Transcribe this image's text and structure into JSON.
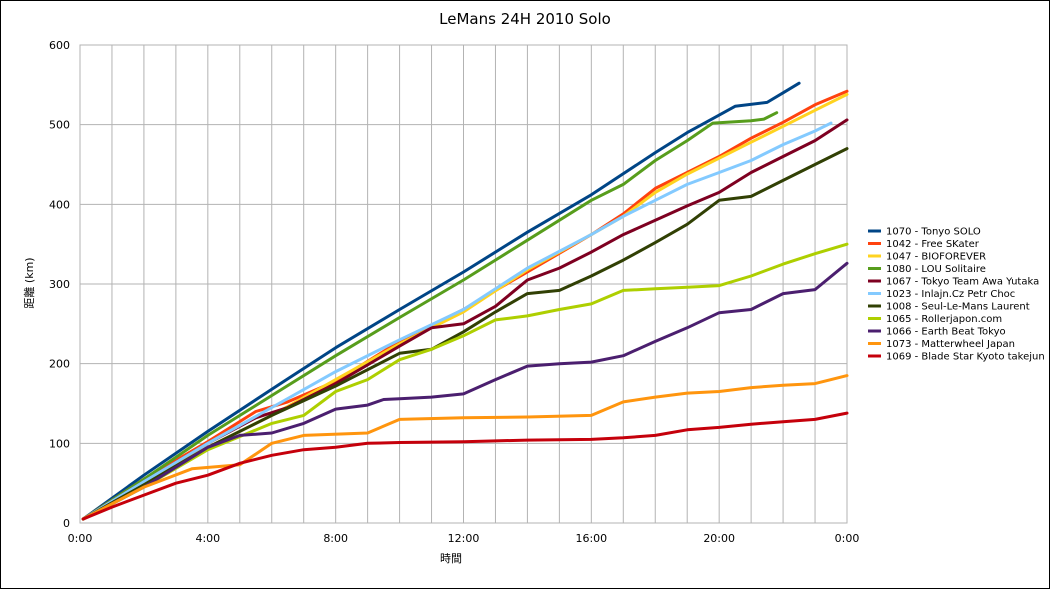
{
  "chart_data": {
    "type": "line",
    "title": "LeMans 24H 2010 Solo",
    "xlabel": "時間",
    "ylabel": "距離 (km)",
    "x_unit": "elapsed hours (tick labels shown as H:MM)",
    "xlim": [
      0,
      24
    ],
    "ylim": [
      0,
      600
    ],
    "x_ticks": [
      "0:00",
      "4:00",
      "8:00",
      "12:00",
      "16:00",
      "20:00",
      "0:00"
    ],
    "y_ticks": [
      "0",
      "100",
      "200",
      "300",
      "400",
      "500",
      "600"
    ],
    "grid": true,
    "legend_position": "right",
    "series": [
      {
        "name": "1070 - Tonyo SOLO",
        "color": "#004586",
        "points": [
          [
            0.1,
            5
          ],
          [
            2,
            60
          ],
          [
            4,
            115
          ],
          [
            6,
            168
          ],
          [
            8,
            220
          ],
          [
            10,
            268
          ],
          [
            12,
            315
          ],
          [
            14,
            365
          ],
          [
            16,
            412
          ],
          [
            18,
            465
          ],
          [
            19,
            490
          ],
          [
            20,
            512
          ],
          [
            20.5,
            523
          ],
          [
            21.5,
            528
          ],
          [
            22,
            540
          ],
          [
            22.5,
            552
          ]
        ]
      },
      {
        "name": "1042 - Free SKater",
        "color": "#ff420e",
        "points": [
          [
            0.1,
            5
          ],
          [
            2,
            55
          ],
          [
            4,
            102
          ],
          [
            5.5,
            140
          ],
          [
            6.5,
            152
          ],
          [
            8,
            178
          ],
          [
            10,
            228
          ],
          [
            12,
            268
          ],
          [
            13,
            292
          ],
          [
            14,
            315
          ],
          [
            16,
            362
          ],
          [
            17,
            388
          ],
          [
            18,
            420
          ],
          [
            19,
            440
          ],
          [
            20,
            460
          ],
          [
            21,
            483
          ],
          [
            22,
            503
          ],
          [
            23,
            525
          ],
          [
            24,
            542
          ]
        ]
      },
      {
        "name": "1047 - BIOFOREVER",
        "color": "#ffd320",
        "points": [
          [
            0.1,
            5
          ],
          [
            2,
            50
          ],
          [
            4,
            95
          ],
          [
            6,
            135
          ],
          [
            8,
            180
          ],
          [
            10,
            225
          ],
          [
            12,
            265
          ],
          [
            14,
            318
          ],
          [
            16,
            362
          ],
          [
            17,
            385
          ],
          [
            18,
            415
          ],
          [
            19,
            438
          ],
          [
            20,
            458
          ],
          [
            21,
            478
          ],
          [
            22,
            498
          ],
          [
            23,
            518
          ],
          [
            24,
            538
          ]
        ]
      },
      {
        "name": "1080 - LOU Solitaire",
        "color": "#579d1c",
        "points": [
          [
            0.1,
            5
          ],
          [
            2,
            55
          ],
          [
            4,
            110
          ],
          [
            6,
            160
          ],
          [
            8,
            210
          ],
          [
            10,
            258
          ],
          [
            12,
            305
          ],
          [
            14,
            355
          ],
          [
            16,
            405
          ],
          [
            17,
            425
          ],
          [
            18,
            455
          ],
          [
            19,
            480
          ],
          [
            19.8,
            502
          ],
          [
            21,
            505
          ],
          [
            21.4,
            507
          ],
          [
            21.8,
            515
          ]
        ]
      },
      {
        "name": "1067 - Tokyo Team Awa Yutaka",
        "color": "#7e0021",
        "points": [
          [
            0.1,
            5
          ],
          [
            2,
            52
          ],
          [
            4,
            100
          ],
          [
            5.5,
            132
          ],
          [
            6.5,
            145
          ],
          [
            8,
            175
          ],
          [
            10,
            222
          ],
          [
            11,
            245
          ],
          [
            12,
            250
          ],
          [
            13,
            272
          ],
          [
            14,
            305
          ],
          [
            15,
            320
          ],
          [
            16,
            340
          ],
          [
            17,
            362
          ],
          [
            18,
            380
          ],
          [
            19,
            398
          ],
          [
            20,
            415
          ],
          [
            21,
            440
          ],
          [
            22,
            460
          ],
          [
            23,
            480
          ],
          [
            24,
            506
          ]
        ]
      },
      {
        "name": "1023 - Inlajn.Cz Petr Choc",
        "color": "#83caff",
        "points": [
          [
            0.1,
            5
          ],
          [
            2,
            52
          ],
          [
            4,
            100
          ],
          [
            6,
            145
          ],
          [
            8,
            190
          ],
          [
            10,
            230
          ],
          [
            12,
            268
          ],
          [
            14,
            320
          ],
          [
            16,
            362
          ],
          [
            17,
            385
          ],
          [
            18,
            405
          ],
          [
            19,
            425
          ],
          [
            20,
            440
          ],
          [
            21,
            455
          ],
          [
            22,
            475
          ],
          [
            23,
            492
          ],
          [
            23.5,
            502
          ]
        ]
      },
      {
        "name": "1008 - Seul-Le-Mans Laurent",
        "color": "#314004",
        "points": [
          [
            0.1,
            5
          ],
          [
            2,
            48
          ],
          [
            4,
            95
          ],
          [
            6,
            135
          ],
          [
            8,
            172
          ],
          [
            10,
            213
          ],
          [
            11,
            218
          ],
          [
            12,
            240
          ],
          [
            13,
            265
          ],
          [
            14,
            288
          ],
          [
            15,
            292
          ],
          [
            16,
            310
          ],
          [
            17,
            330
          ],
          [
            18,
            352
          ],
          [
            19,
            375
          ],
          [
            20,
            405
          ],
          [
            21,
            410
          ],
          [
            22,
            430
          ],
          [
            23,
            450
          ],
          [
            24,
            470
          ]
        ]
      },
      {
        "name": "1065 - Rollerjapon.com",
        "color": "#aecf00",
        "points": [
          [
            0.1,
            5
          ],
          [
            2,
            45
          ],
          [
            4,
            92
          ],
          [
            6,
            125
          ],
          [
            7,
            135
          ],
          [
            8,
            165
          ],
          [
            9,
            180
          ],
          [
            10,
            205
          ],
          [
            11,
            218
          ],
          [
            12,
            235
          ],
          [
            13,
            255
          ],
          [
            14,
            260
          ],
          [
            15,
            268
          ],
          [
            16,
            275
          ],
          [
            17,
            292
          ],
          [
            18,
            294
          ],
          [
            19,
            296
          ],
          [
            20,
            298
          ],
          [
            21,
            310
          ],
          [
            22,
            325
          ],
          [
            23,
            338
          ],
          [
            24,
            350
          ]
        ]
      },
      {
        "name": "1066 - Earth Beat Tokyo",
        "color": "#4b1f6f",
        "points": [
          [
            0.1,
            5
          ],
          [
            2,
            45
          ],
          [
            4,
            95
          ],
          [
            5,
            110
          ],
          [
            6,
            113
          ],
          [
            7,
            125
          ],
          [
            8,
            143
          ],
          [
            9,
            148
          ],
          [
            9.5,
            155
          ],
          [
            10,
            156
          ],
          [
            11,
            158
          ],
          [
            12,
            162
          ],
          [
            13,
            180
          ],
          [
            14,
            197
          ],
          [
            15,
            200
          ],
          [
            16,
            202
          ],
          [
            17,
            210
          ],
          [
            18,
            228
          ],
          [
            19,
            245
          ],
          [
            20,
            264
          ],
          [
            21,
            268
          ],
          [
            22,
            288
          ],
          [
            23,
            293
          ],
          [
            24,
            326
          ]
        ]
      },
      {
        "name": "1073 - Matterwheel Japan",
        "color": "#ff950e",
        "points": [
          [
            0.1,
            5
          ],
          [
            2,
            45
          ],
          [
            3.5,
            68
          ],
          [
            5,
            73
          ],
          [
            6,
            100
          ],
          [
            7,
            110
          ],
          [
            9,
            113
          ],
          [
            10,
            130
          ],
          [
            12,
            132
          ],
          [
            14,
            133
          ],
          [
            16,
            135
          ],
          [
            17,
            152
          ],
          [
            18,
            158
          ],
          [
            19,
            163
          ],
          [
            20,
            165
          ],
          [
            21,
            170
          ],
          [
            22,
            173
          ],
          [
            23,
            175
          ],
          [
            24,
            185
          ]
        ]
      },
      {
        "name": "1069 - Blade Star Kyoto takejun",
        "color": "#c5000b",
        "points": [
          [
            0.1,
            5
          ],
          [
            1,
            20
          ],
          [
            2,
            35
          ],
          [
            3,
            50
          ],
          [
            4,
            60
          ],
          [
            5,
            75
          ],
          [
            6,
            85
          ],
          [
            7,
            92
          ],
          [
            8,
            95
          ],
          [
            9,
            100
          ],
          [
            10,
            101
          ],
          [
            12,
            102
          ],
          [
            14,
            104
          ],
          [
            16,
            105
          ],
          [
            17,
            107
          ],
          [
            18,
            110
          ],
          [
            19,
            117
          ],
          [
            20,
            120
          ],
          [
            21,
            124
          ],
          [
            22,
            127
          ],
          [
            23,
            130
          ],
          [
            24,
            138
          ]
        ]
      }
    ]
  }
}
